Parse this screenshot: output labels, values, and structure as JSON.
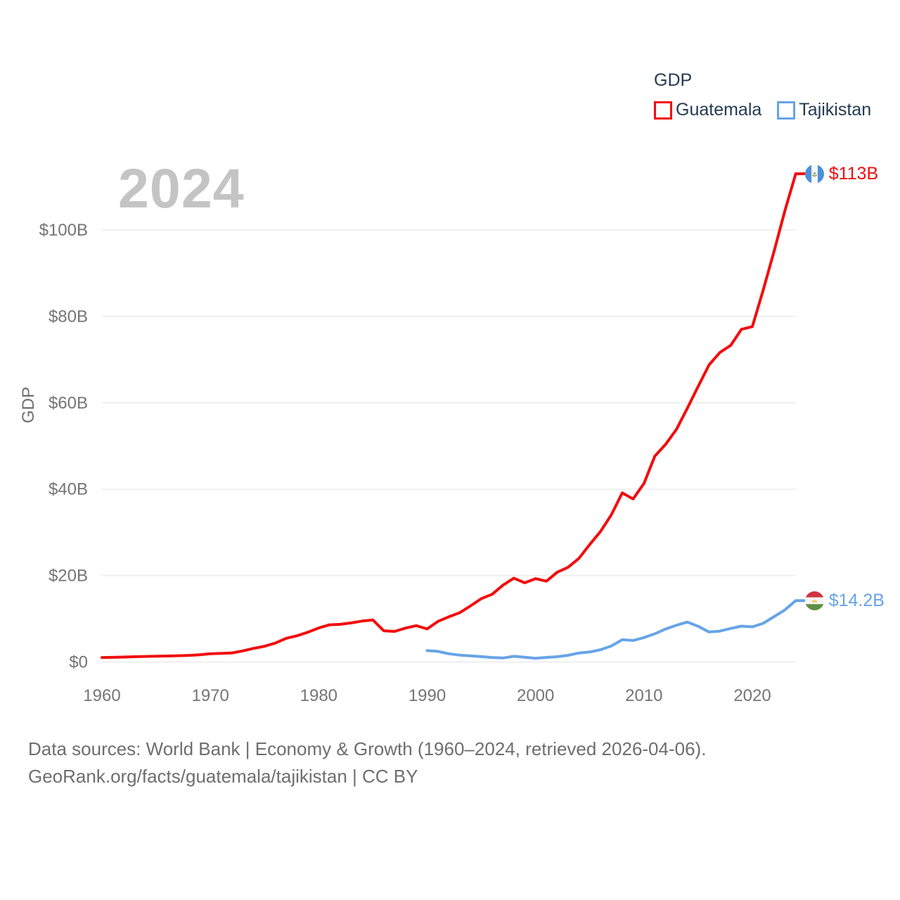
{
  "watermark": "2024",
  "legend": {
    "title": "GDP",
    "items": [
      {
        "label": "Guatemala"
      },
      {
        "label": "Tajikistan"
      }
    ]
  },
  "footer": {
    "line1": "Data sources: World Bank | Economy & Growth (1960–2024, retrieved 2026-04-06).",
    "line2": "GeoRank.org/facts/guatemala/tajikistan | CC BY"
  },
  "colors": {
    "guatemala_red": "#f20d0d",
    "tajikistan_blue": "#67a4e7",
    "gridline": "#ebebeb",
    "tick_text": "#757575",
    "legend_text": "#253a50",
    "watermark_gray": "#c4c4c4",
    "footer_gray": "#6e6e6e"
  },
  "icons": [
    {
      "name": "guatemala-flag-icon",
      "description": "circular Guatemala flag (blue-white-blue vertical stripes with emblem)"
    },
    {
      "name": "tajikistan-flag-icon",
      "description": "circular Tajikistan flag (red-white-green horizontal stripes with gold crown)"
    }
  ],
  "chart_data": {
    "type": "line",
    "title": "GDP",
    "xlabel": "",
    "ylabel": "GDP",
    "x_range": [
      1960,
      2024
    ],
    "y_range": [
      0,
      113
    ],
    "grid": true,
    "legend_position": "top-right",
    "y_ticks": [
      {
        "value": 0,
        "label": "$0"
      },
      {
        "value": 20,
        "label": "$20B"
      },
      {
        "value": 40,
        "label": "$40B"
      },
      {
        "value": 60,
        "label": "$60B"
      },
      {
        "value": 80,
        "label": "$80B"
      },
      {
        "value": 100,
        "label": "$100B"
      }
    ],
    "x_ticks": [
      {
        "value": 1960,
        "label": "1960"
      },
      {
        "value": 1970,
        "label": "1970"
      },
      {
        "value": 1980,
        "label": "1980"
      },
      {
        "value": 1990,
        "label": "1990"
      },
      {
        "value": 2000,
        "label": "2000"
      },
      {
        "value": 2010,
        "label": "2010"
      },
      {
        "value": 2020,
        "label": "2020"
      }
    ],
    "series": [
      {
        "name": "Guatemala",
        "color": "#f20d0d",
        "flag": "guatemala-flag-icon",
        "end_label": "$113B",
        "start_year": 1960,
        "end_year": 2024,
        "unit": "billion USD",
        "values": [
          1.04,
          1.08,
          1.14,
          1.22,
          1.28,
          1.33,
          1.39,
          1.45,
          1.53,
          1.66,
          1.9,
          1.98,
          2.1,
          2.57,
          3.16,
          3.65,
          4.37,
          5.48,
          6.07,
          6.9,
          7.88,
          8.61,
          8.72,
          9.05,
          9.47,
          9.72,
          7.23,
          7.08,
          7.84,
          8.41,
          7.65,
          9.41,
          10.44,
          11.4,
          12.98,
          14.66,
          15.67,
          17.79,
          19.4,
          18.32,
          19.29,
          18.7,
          20.78,
          21.92,
          23.97,
          27.21,
          30.23,
          34.11,
          39.14,
          37.73,
          41.34,
          47.65,
          50.39,
          53.85,
          58.72,
          63.77,
          68.76,
          71.64,
          73.28,
          77.0,
          77.6,
          86.06,
          95.06,
          104.45,
          113.0
        ]
      },
      {
        "name": "Tajikistan",
        "color": "#67a4e7",
        "flag": "tajikistan-flag-icon",
        "end_label": "$14.2B",
        "start_year": 1990,
        "end_year": 2024,
        "unit": "billion USD",
        "values": [
          2.63,
          2.46,
          1.9,
          1.6,
          1.42,
          1.23,
          1.04,
          0.92,
          1.32,
          1.09,
          0.86,
          1.06,
          1.22,
          1.55,
          2.08,
          2.31,
          2.83,
          3.72,
          5.16,
          4.98,
          5.64,
          6.52,
          7.63,
          8.51,
          9.24,
          8.27,
          6.95,
          7.15,
          7.77,
          8.3,
          8.13,
          8.93,
          10.49,
          12.06,
          14.2
        ]
      }
    ]
  }
}
